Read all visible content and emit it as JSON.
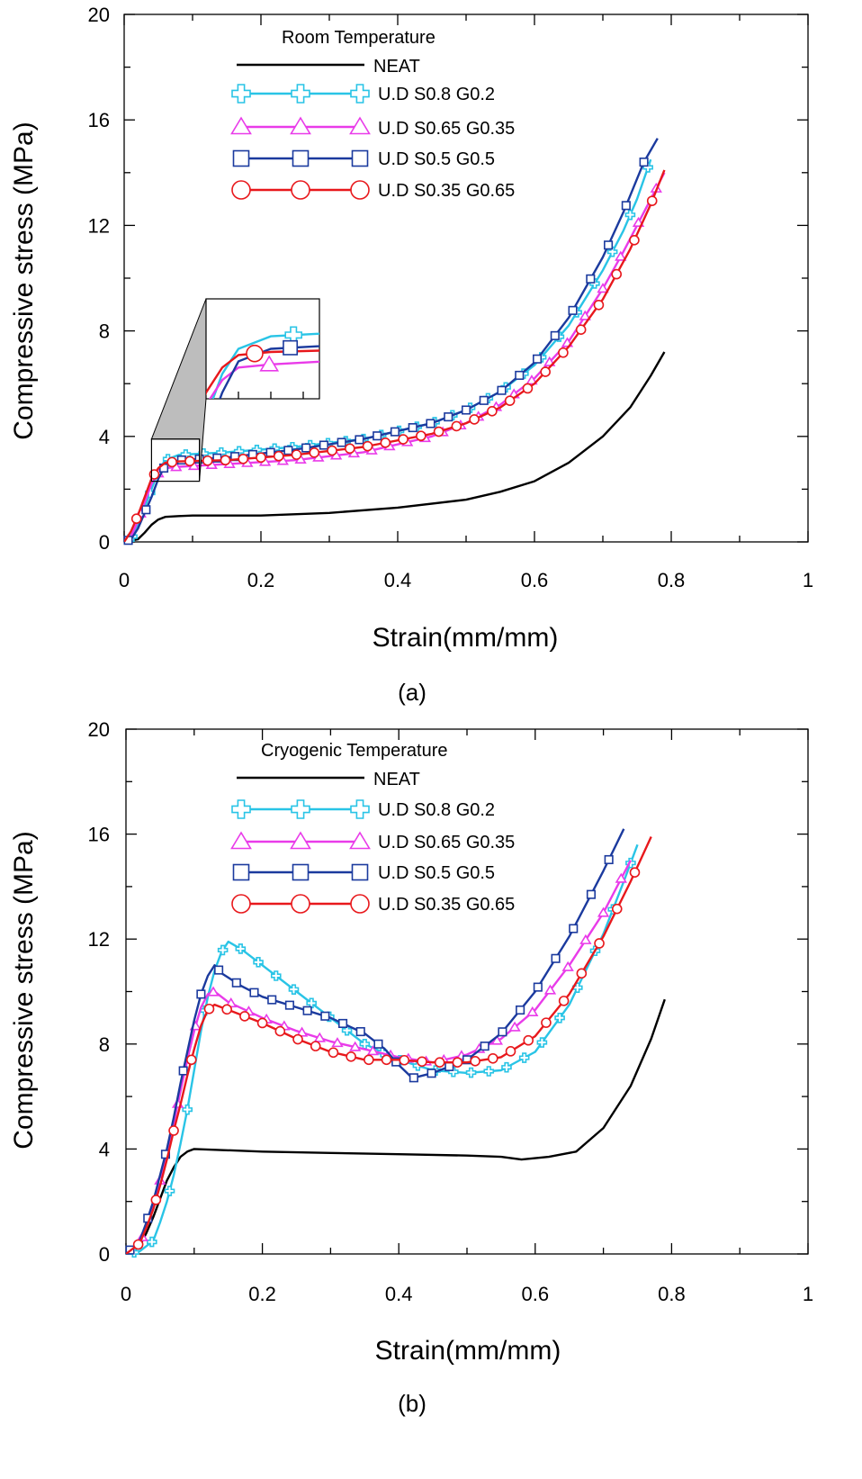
{
  "figure": {
    "colors": {
      "neat": "#000000",
      "s08": "#29c4e6",
      "s065": "#e93be9",
      "s05": "#1b3a9e",
      "s035": "#e8181c"
    }
  },
  "chart_data": [
    {
      "type": "line",
      "panel_label": "(a)",
      "legend_title": "Room Temperature",
      "legend_position": "top-center",
      "xlabel": "Strain(mm/mm)",
      "ylabel": "Compressive stress (MPa)",
      "xlim": [
        0,
        1
      ],
      "ylim": [
        0,
        20
      ],
      "xticks": [
        0,
        0.2,
        0.4,
        0.6,
        0.8,
        1
      ],
      "xtick_labels": [
        "0",
        "0.2",
        "0.4",
        "0.6",
        "0.8",
        "1"
      ],
      "yticks": [
        0,
        4,
        8,
        12,
        16,
        20
      ],
      "ytick_labels": [
        "0",
        "4",
        "8",
        "12",
        "16",
        "20"
      ],
      "grid": false,
      "inset": {
        "zoom_region": {
          "x": [
            0.04,
            0.11
          ],
          "y": [
            2.3,
            3.9
          ]
        }
      },
      "series": [
        {
          "name": "NEAT",
          "color_key": "neat",
          "marker": "none",
          "x": [
            0,
            0.02,
            0.03,
            0.04,
            0.05,
            0.06,
            0.08,
            0.1,
            0.2,
            0.3,
            0.4,
            0.5,
            0.55,
            0.6,
            0.65,
            0.7,
            0.74,
            0.77,
            0.79
          ],
          "y": [
            0,
            0.1,
            0.35,
            0.65,
            0.85,
            0.95,
            0.98,
            1.0,
            1.0,
            1.1,
            1.3,
            1.6,
            1.9,
            2.3,
            3.0,
            4.0,
            5.1,
            6.3,
            7.2
          ]
        },
        {
          "name": "U.D S0.8 G0.2",
          "color_key": "s08",
          "marker": "plus",
          "x": [
            0,
            0.01,
            0.02,
            0.03,
            0.04,
            0.05,
            0.06,
            0.08,
            0.15,
            0.25,
            0.35,
            0.45,
            0.5,
            0.55,
            0.6,
            0.65,
            0.7,
            0.73,
            0.75,
            0.77
          ],
          "y": [
            0,
            0.1,
            0.6,
            1.3,
            2.0,
            2.7,
            3.1,
            3.3,
            3.4,
            3.6,
            3.9,
            4.5,
            5.0,
            5.7,
            6.7,
            8.2,
            10.3,
            11.8,
            13.0,
            14.5
          ]
        },
        {
          "name": "U.D S0.65 G0.35",
          "color_key": "s065",
          "marker": "triangle",
          "x": [
            0,
            0.01,
            0.02,
            0.03,
            0.04,
            0.05,
            0.06,
            0.08,
            0.15,
            0.25,
            0.35,
            0.45,
            0.5,
            0.55,
            0.6,
            0.65,
            0.7,
            0.73,
            0.76,
            0.79
          ],
          "y": [
            0,
            0.2,
            0.8,
            1.5,
            2.2,
            2.6,
            2.8,
            2.85,
            2.95,
            3.1,
            3.4,
            4.0,
            4.5,
            5.2,
            6.2,
            7.6,
            9.6,
            11.0,
            12.5,
            14.0
          ]
        },
        {
          "name": "U.D S0.5 G0.5",
          "color_key": "s05",
          "marker": "square",
          "x": [
            0,
            0.01,
            0.02,
            0.03,
            0.04,
            0.05,
            0.06,
            0.08,
            0.15,
            0.25,
            0.35,
            0.45,
            0.5,
            0.55,
            0.6,
            0.65,
            0.7,
            0.73,
            0.76,
            0.78
          ],
          "y": [
            0,
            0.1,
            0.5,
            1.1,
            1.7,
            2.4,
            2.9,
            3.1,
            3.2,
            3.5,
            3.9,
            4.5,
            5.0,
            5.7,
            6.8,
            8.5,
            10.8,
            12.5,
            14.4,
            15.3
          ]
        },
        {
          "name": "U.D S0.35 G0.65",
          "color_key": "s035",
          "marker": "circle",
          "x": [
            0,
            0.01,
            0.02,
            0.03,
            0.04,
            0.05,
            0.06,
            0.08,
            0.15,
            0.25,
            0.35,
            0.45,
            0.5,
            0.55,
            0.6,
            0.65,
            0.7,
            0.74,
            0.77,
            0.79
          ],
          "y": [
            0,
            0.4,
            1.0,
            1.7,
            2.4,
            2.8,
            3.0,
            3.05,
            3.1,
            3.3,
            3.6,
            4.1,
            4.5,
            5.1,
            6.0,
            7.4,
            9.2,
            11.1,
            12.8,
            14.1
          ]
        }
      ]
    },
    {
      "type": "line",
      "panel_label": "(b)",
      "legend_title": "Cryogenic Temperature",
      "legend_position": "top-center",
      "xlabel": "Strain(mm/mm)",
      "ylabel": "Compressive stress (MPa)",
      "xlim": [
        0,
        1
      ],
      "ylim": [
        0,
        20
      ],
      "xticks": [
        0,
        0.2,
        0.4,
        0.6,
        0.8,
        1
      ],
      "xtick_labels": [
        "0",
        "0.2",
        "0.4",
        "0.6",
        "0.8",
        "1"
      ],
      "yticks": [
        0,
        4,
        8,
        12,
        16,
        20
      ],
      "ytick_labels": [
        "0",
        "4",
        "8",
        "12",
        "16",
        "20"
      ],
      "grid": false,
      "series": [
        {
          "name": "NEAT",
          "color_key": "neat",
          "marker": "none",
          "x": [
            0,
            0.01,
            0.02,
            0.03,
            0.04,
            0.05,
            0.06,
            0.07,
            0.08,
            0.09,
            0.1,
            0.2,
            0.3,
            0.4,
            0.5,
            0.55,
            0.58,
            0.62,
            0.66,
            0.7,
            0.74,
            0.77,
            0.79
          ],
          "y": [
            0,
            0.1,
            0.3,
            0.8,
            1.4,
            2.1,
            2.8,
            3.3,
            3.7,
            3.9,
            4.0,
            3.9,
            3.85,
            3.8,
            3.75,
            3.7,
            3.6,
            3.7,
            3.9,
            4.8,
            6.4,
            8.2,
            9.7
          ]
        },
        {
          "name": "U.D S0.8 G0.2",
          "color_key": "s08",
          "marker": "plus",
          "x": [
            0,
            0.02,
            0.04,
            0.05,
            0.06,
            0.07,
            0.08,
            0.09,
            0.1,
            0.11,
            0.12,
            0.13,
            0.14,
            0.15,
            0.17,
            0.2,
            0.25,
            0.3,
            0.35,
            0.4,
            0.45,
            0.5,
            0.55,
            0.6,
            0.65,
            0.7,
            0.73,
            0.75
          ],
          "y": [
            0,
            0.1,
            0.5,
            1.2,
            2.0,
            3.0,
            4.2,
            5.5,
            7.0,
            8.5,
            9.8,
            10.8,
            11.5,
            11.9,
            11.6,
            11.0,
            10.0,
            9.0,
            8.0,
            7.4,
            7.0,
            6.9,
            7.0,
            7.7,
            9.5,
            12.2,
            14.2,
            15.6
          ]
        },
        {
          "name": "U.D S0.65 G0.35",
          "color_key": "s065",
          "marker": "triangle",
          "x": [
            0,
            0.02,
            0.03,
            0.04,
            0.05,
            0.06,
            0.07,
            0.08,
            0.09,
            0.1,
            0.11,
            0.12,
            0.13,
            0.15,
            0.2,
            0.25,
            0.3,
            0.35,
            0.4,
            0.45,
            0.5,
            0.55,
            0.6,
            0.65,
            0.7,
            0.74
          ],
          "y": [
            0,
            0.4,
            1.0,
            1.8,
            2.8,
            3.9,
            5.0,
            6.2,
            7.4,
            8.5,
            9.4,
            9.9,
            10.0,
            9.6,
            9.0,
            8.5,
            8.1,
            7.8,
            7.5,
            7.3,
            7.6,
            8.2,
            9.3,
            11.0,
            13.0,
            15.0
          ]
        },
        {
          "name": "U.D S0.5 G0.5",
          "color_key": "s05",
          "marker": "square",
          "x": [
            0,
            0.02,
            0.03,
            0.04,
            0.05,
            0.06,
            0.07,
            0.08,
            0.09,
            0.1,
            0.11,
            0.12,
            0.13,
            0.14,
            0.17,
            0.2,
            0.25,
            0.3,
            0.35,
            0.38,
            0.4,
            0.42,
            0.45,
            0.5,
            0.55,
            0.6,
            0.65,
            0.7,
            0.73
          ],
          "y": [
            0,
            0.5,
            1.2,
            2.0,
            3.0,
            4.0,
            5.2,
            6.5,
            7.7,
            8.9,
            9.9,
            10.6,
            11.0,
            10.7,
            10.2,
            9.8,
            9.4,
            9.0,
            8.4,
            7.8,
            7.2,
            6.7,
            6.9,
            7.4,
            8.4,
            10.0,
            12.1,
            14.6,
            16.2
          ]
        },
        {
          "name": "U.D S0.35 G0.65",
          "color_key": "s035",
          "marker": "circle",
          "x": [
            0,
            0.02,
            0.03,
            0.04,
            0.05,
            0.06,
            0.07,
            0.08,
            0.09,
            0.1,
            0.11,
            0.12,
            0.13,
            0.15,
            0.2,
            0.25,
            0.3,
            0.35,
            0.4,
            0.45,
            0.5,
            0.55,
            0.6,
            0.65,
            0.7,
            0.74,
            0.77
          ],
          "y": [
            0,
            0.4,
            1.0,
            1.7,
            2.6,
            3.6,
            4.7,
            5.7,
            6.8,
            7.8,
            8.7,
            9.3,
            9.5,
            9.3,
            8.8,
            8.2,
            7.7,
            7.4,
            7.4,
            7.3,
            7.3,
            7.5,
            8.3,
            9.9,
            12.1,
            14.2,
            15.9
          ]
        }
      ]
    }
  ]
}
